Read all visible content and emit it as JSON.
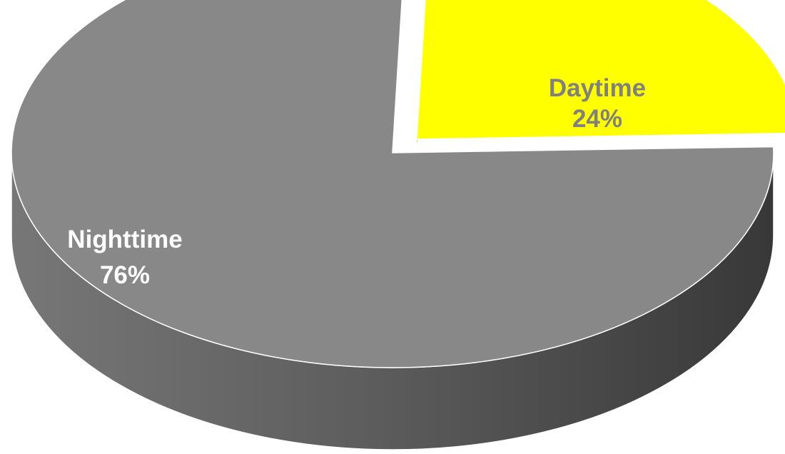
{
  "chart_data": {
    "type": "pie",
    "style": "3d-exploded",
    "title": "",
    "slices": [
      {
        "name": "Daytime",
        "value": 24,
        "percent_label": "24%",
        "color": "#ffff00",
        "label_color": "#808080",
        "exploded": true
      },
      {
        "name": "Nighttime",
        "value": 76,
        "percent_label": "76%",
        "color": "#888888",
        "label_color": "#ffffff",
        "exploded": false
      }
    ],
    "legend": "none"
  }
}
